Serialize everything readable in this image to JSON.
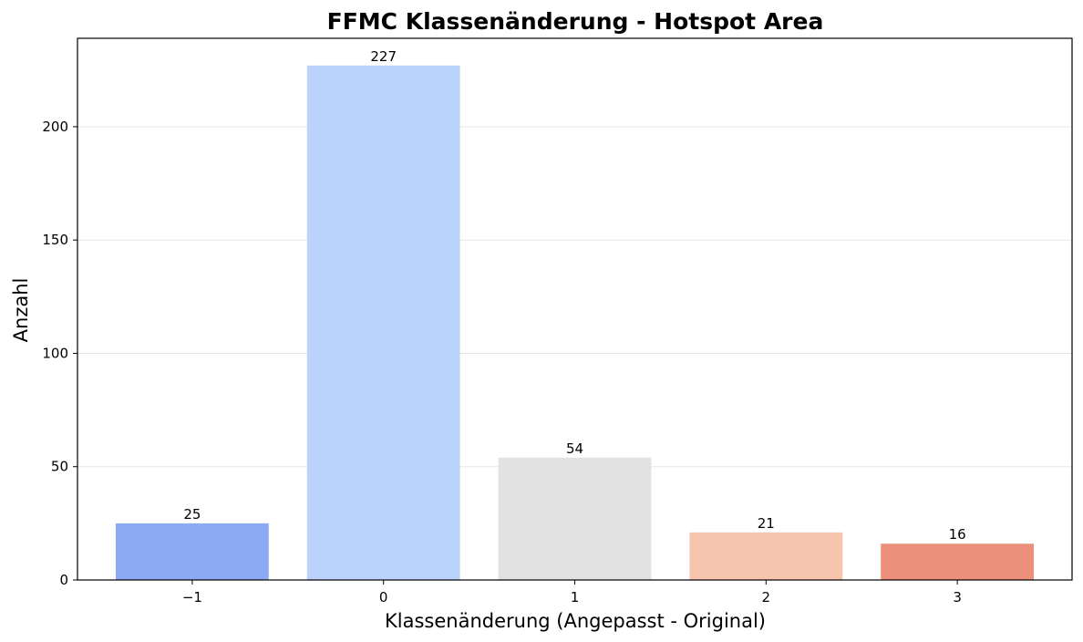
{
  "chart_data": {
    "type": "bar",
    "title": "FFMC Klassenänderung - Hotspot Area",
    "xlabel": "Klassenänderung (Angepasst - Original)",
    "ylabel": "Anzahl",
    "categories": [
      "−1",
      "0",
      "1",
      "2",
      "3"
    ],
    "values": [
      25,
      227,
      54,
      21,
      16
    ],
    "data_labels": [
      "25",
      "227",
      "54",
      "21",
      "16"
    ],
    "colors": [
      "#8caaf3",
      "#bbd2fa",
      "#e2e2e2",
      "#f7c4ae",
      "#ec907c"
    ],
    "ylim": [
      0,
      239
    ],
    "yticks": [
      0,
      50,
      100,
      150,
      200
    ],
    "ytick_labels": [
      "0",
      "50",
      "100",
      "150",
      "200"
    ],
    "grid": "horizontal",
    "legend": "none"
  }
}
